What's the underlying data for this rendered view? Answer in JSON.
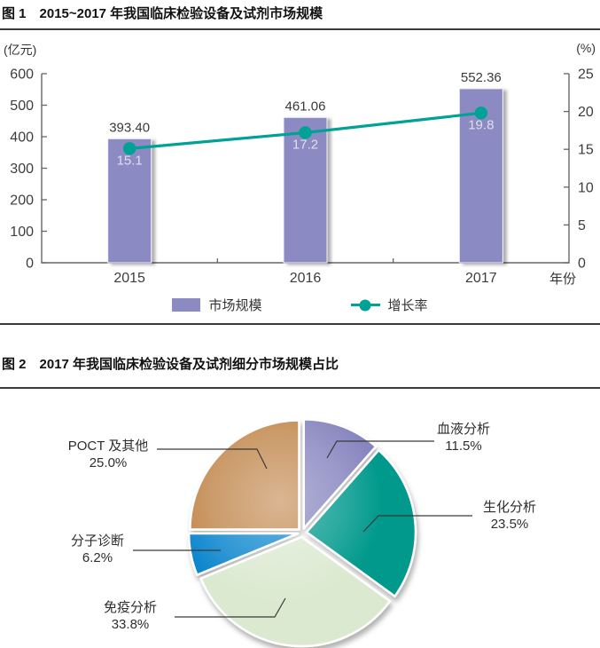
{
  "figure1": {
    "label": "图 1",
    "title": "2015~2017 年我国临床检验设备及试剂市场规模",
    "left_axis_unit": "(亿元)",
    "right_axis_unit": "(%)",
    "x_axis_label": "年份"
  },
  "figure2": {
    "label": "图 2",
    "title": "2017 年我国临床检验设备及试剂细分市场规模占比"
  },
  "chart_data": [
    {
      "type": "bar+line",
      "title": "2015~2017 年我国临床检验设备及试剂市场规模",
      "categories": [
        "2015",
        "2016",
        "2017"
      ],
      "series": [
        {
          "name": "市场规模",
          "type": "bar",
          "axis": "left",
          "unit": "亿元",
          "values": [
            393.4,
            461.06,
            552.36
          ],
          "labels": [
            "393.40",
            "461.06",
            "552.36"
          ],
          "color": "#8c8ac3"
        },
        {
          "name": "增长率",
          "type": "line",
          "axis": "right",
          "unit": "%",
          "values": [
            15.1,
            17.2,
            19.8
          ],
          "labels": [
            "15.1",
            "17.2",
            "19.8"
          ],
          "color": "#00a295"
        }
      ],
      "left_axis": {
        "min": 0,
        "max": 600,
        "step": 100,
        "ticks": [
          "0",
          "100",
          "200",
          "300",
          "400",
          "500",
          "600"
        ]
      },
      "right_axis": {
        "min": 0,
        "max": 25,
        "step": 5,
        "ticks": [
          "0",
          "5",
          "10",
          "15",
          "20",
          "25"
        ]
      },
      "xlabel": "年份",
      "grid": false,
      "legend_position": "bottom"
    },
    {
      "type": "pie",
      "title": "2017 年我国临床检验设备及试剂细分市场规模占比",
      "start_angle_deg": 0,
      "direction": "clockwise",
      "slices": [
        {
          "label": "血液分析",
          "value": 11.5,
          "pct_label": "11.5%",
          "color": "#8785bf"
        },
        {
          "label": "生化分析",
          "value": 23.5,
          "pct_label": "23.5%",
          "color": "#00998c"
        },
        {
          "label": "免疫分析",
          "value": 33.8,
          "pct_label": "33.8%",
          "color": "#dbe9d0"
        },
        {
          "label": "分子诊断",
          "value": 6.2,
          "pct_label": "6.2%",
          "color": "#0d86cd"
        },
        {
          "label": "POCT 及其他",
          "value": 25.0,
          "pct_label": "25.0%",
          "color": "#c2894f"
        }
      ]
    }
  ]
}
